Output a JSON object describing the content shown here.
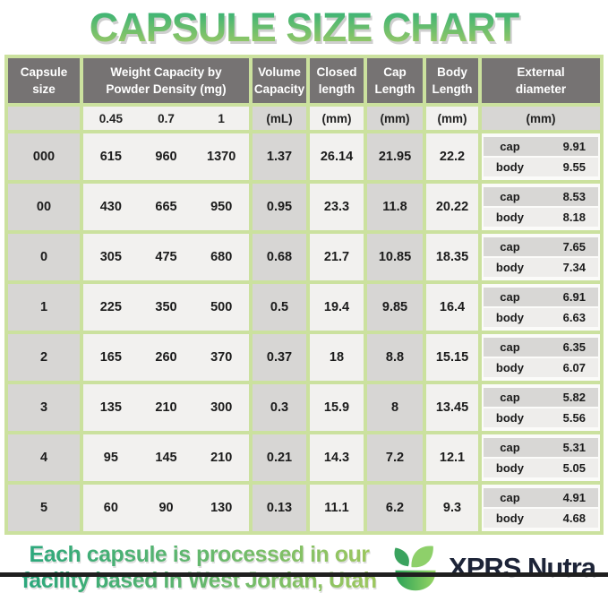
{
  "title": "CAPSULE SIZE CHART",
  "table": {
    "headers": {
      "capsule_size": "Capsule size",
      "weight_line1": "Weight Capacity by",
      "weight_line2": "Powder Density (mg)",
      "volume": "Volume Capacity",
      "closed": "Closed length",
      "cap": "Cap Length",
      "body": "Body Length",
      "external": "External diameter"
    },
    "units": {
      "weight": [
        "0.45",
        "0.7",
        "1"
      ],
      "volume": "(mL)",
      "closed": "(mm)",
      "cap": "(mm)",
      "body": "(mm)",
      "external": "(mm)"
    },
    "cap_label": "cap",
    "body_label": "body",
    "rows": [
      {
        "size": "000",
        "w045": "615",
        "w07": "960",
        "w1": "1370",
        "volume": "1.37",
        "closed": "26.14",
        "cap_len": "21.95",
        "body_len": "22.2",
        "cap_dia": "9.91",
        "body_dia": "9.55"
      },
      {
        "size": "00",
        "w045": "430",
        "w07": "665",
        "w1": "950",
        "volume": "0.95",
        "closed": "23.3",
        "cap_len": "11.8",
        "body_len": "20.22",
        "cap_dia": "8.53",
        "body_dia": "8.18"
      },
      {
        "size": "0",
        "w045": "305",
        "w07": "475",
        "w1": "680",
        "volume": "0.68",
        "closed": "21.7",
        "cap_len": "10.85",
        "body_len": "18.35",
        "cap_dia": "7.65",
        "body_dia": "7.34"
      },
      {
        "size": "1",
        "w045": "225",
        "w07": "350",
        "w1": "500",
        "volume": "0.5",
        "closed": "19.4",
        "cap_len": "9.85",
        "body_len": "16.4",
        "cap_dia": "6.91",
        "body_dia": "6.63"
      },
      {
        "size": "2",
        "w045": "165",
        "w07": "260",
        "w1": "370",
        "volume": "0.37",
        "closed": "18",
        "cap_len": "8.8",
        "body_len": "15.15",
        "cap_dia": "6.35",
        "body_dia": "6.07"
      },
      {
        "size": "3",
        "w045": "135",
        "w07": "210",
        "w1": "300",
        "volume": "0.3",
        "closed": "15.9",
        "cap_len": "8",
        "body_len": "13.45",
        "cap_dia": "5.82",
        "body_dia": "5.56"
      },
      {
        "size": "4",
        "w045": "95",
        "w07": "145",
        "w1": "210",
        "volume": "0.21",
        "closed": "14.3",
        "cap_len": "7.2",
        "body_len": "12.1",
        "cap_dia": "5.31",
        "body_dia": "5.05"
      },
      {
        "size": "5",
        "w045": "60",
        "w07": "90",
        "w1": "130",
        "volume": "0.13",
        "closed": "11.1",
        "cap_len": "6.2",
        "body_len": "9.3",
        "cap_dia": "4.91",
        "body_dia": "4.68"
      }
    ]
  },
  "footer": {
    "line1": "Each capsule is processed in our",
    "line2": "facility based in West Jordan, Utah",
    "brand": "XPRS Nutra"
  },
  "colors": {
    "title_gradient_top": "#2fb077",
    "title_gradient_bottom": "#a4cb64",
    "table_border_green": "#cbe19e",
    "header_gray": "#767373",
    "cell_gray": "#d7d6d4",
    "cell_white": "#f2f1ef",
    "external_cap_row": "#d8d7d5",
    "external_body_row": "#eeedeb",
    "footer_gradient_left": "#2ca87c",
    "footer_gradient_right": "#9cc75f",
    "brand_text": "#1d2438",
    "logo_green_dark": "#2aa257",
    "logo_green_light": "#97d563"
  },
  "chart_data": {
    "type": "table",
    "title": "CAPSULE SIZE CHART",
    "columns": [
      "Capsule size",
      "Weight Capacity at 0.45 Powder Density (mg)",
      "Weight Capacity at 0.7 Powder Density (mg)",
      "Weight Capacity at 1 Powder Density (mg)",
      "Volume Capacity (mL)",
      "Closed length (mm)",
      "Cap Length (mm)",
      "Body Length (mm)",
      "External diameter cap (mm)",
      "External diameter body (mm)"
    ],
    "rows": [
      [
        "000",
        615,
        960,
        1370,
        1.37,
        26.14,
        21.95,
        22.2,
        9.91,
        9.55
      ],
      [
        "00",
        430,
        665,
        950,
        0.95,
        23.3,
        11.8,
        20.22,
        8.53,
        8.18
      ],
      [
        "0",
        305,
        475,
        680,
        0.68,
        21.7,
        10.85,
        18.35,
        7.65,
        7.34
      ],
      [
        "1",
        225,
        350,
        500,
        0.5,
        19.4,
        9.85,
        16.4,
        6.91,
        6.63
      ],
      [
        "2",
        165,
        260,
        370,
        0.37,
        18,
        8.8,
        15.15,
        6.35,
        6.07
      ],
      [
        "3",
        135,
        210,
        300,
        0.3,
        15.9,
        8,
        13.45,
        5.82,
        5.56
      ],
      [
        "4",
        95,
        145,
        210,
        0.21,
        14.3,
        7.2,
        12.1,
        5.31,
        5.05
      ],
      [
        "5",
        60,
        90,
        130,
        0.13,
        11.1,
        6.2,
        9.3,
        4.91,
        4.68
      ]
    ]
  }
}
